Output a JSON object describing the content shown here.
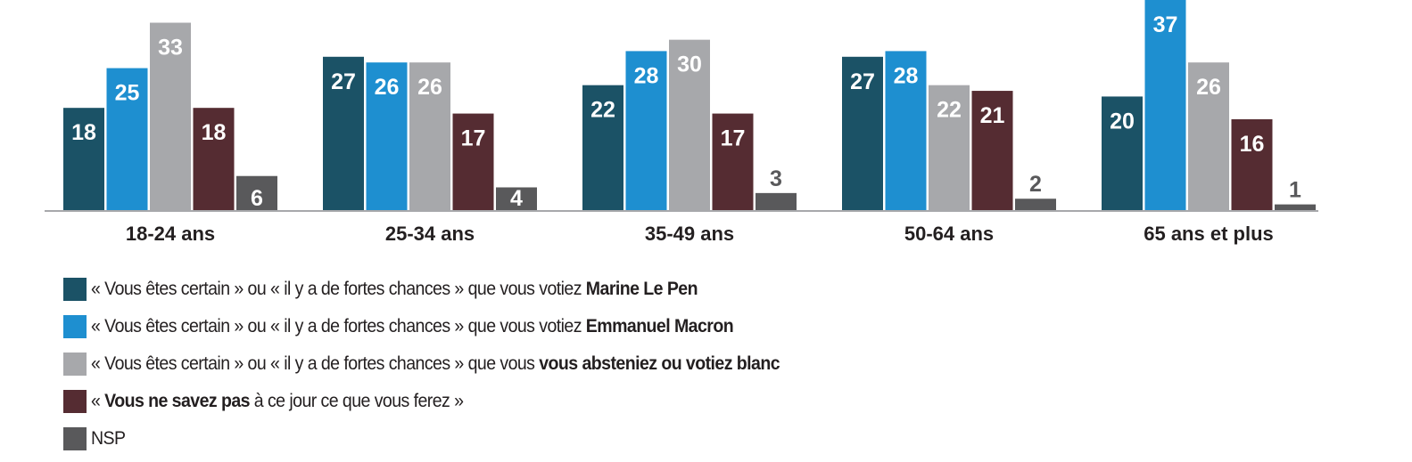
{
  "chart_data": {
    "type": "bar",
    "title": "",
    "xlabel": "",
    "ylabel": "",
    "ylim": [
      0,
      37
    ],
    "grid": false,
    "categories": [
      "18-24 ans",
      "25-34 ans",
      "35-49 ans",
      "50-64 ans",
      "65 ans et plus"
    ],
    "series": [
      {
        "name": "Marine Le Pen",
        "color": "#1b5266",
        "values": [
          18,
          27,
          22,
          27,
          20
        ]
      },
      {
        "name": "Emmanuel Macron",
        "color": "#1e8fd0",
        "values": [
          25,
          26,
          28,
          28,
          37
        ]
      },
      {
        "name": "vous absteniez ou votiez blanc",
        "color": "#a7a8ab",
        "values": [
          33,
          26,
          30,
          22,
          26
        ]
      },
      {
        "name": "Vous ne savez pas",
        "color": "#552c32",
        "values": [
          18,
          17,
          17,
          21,
          16
        ]
      },
      {
        "name": "NSP",
        "color": "#59595b",
        "values": [
          6,
          4,
          3,
          2,
          1
        ]
      }
    ],
    "legend_position": "bottom-left"
  },
  "legend": [
    {
      "prefix": "« Vous êtes certain » ou « il y a de fortes chances » que vous votiez ",
      "bold": "Marine Le Pen",
      "suffix": "",
      "color": "#1b5266"
    },
    {
      "prefix": "« Vous êtes certain » ou « il y a de fortes chances » que vous votiez ",
      "bold": "Emmanuel Macron",
      "suffix": "",
      "color": "#1e8fd0"
    },
    {
      "prefix": "« Vous êtes certain » ou « il y a de fortes chances » que vous ",
      "bold": "vous absteniez ou votiez blanc",
      "suffix": "",
      "color": "#a7a8ab"
    },
    {
      "prefix": "« ",
      "bold": "Vous ne savez pas",
      "suffix": " à ce jour ce que vous ferez »",
      "color": "#552c32"
    },
    {
      "prefix": "",
      "bold": "",
      "suffix": "NSP",
      "color": "#59595b"
    }
  ]
}
